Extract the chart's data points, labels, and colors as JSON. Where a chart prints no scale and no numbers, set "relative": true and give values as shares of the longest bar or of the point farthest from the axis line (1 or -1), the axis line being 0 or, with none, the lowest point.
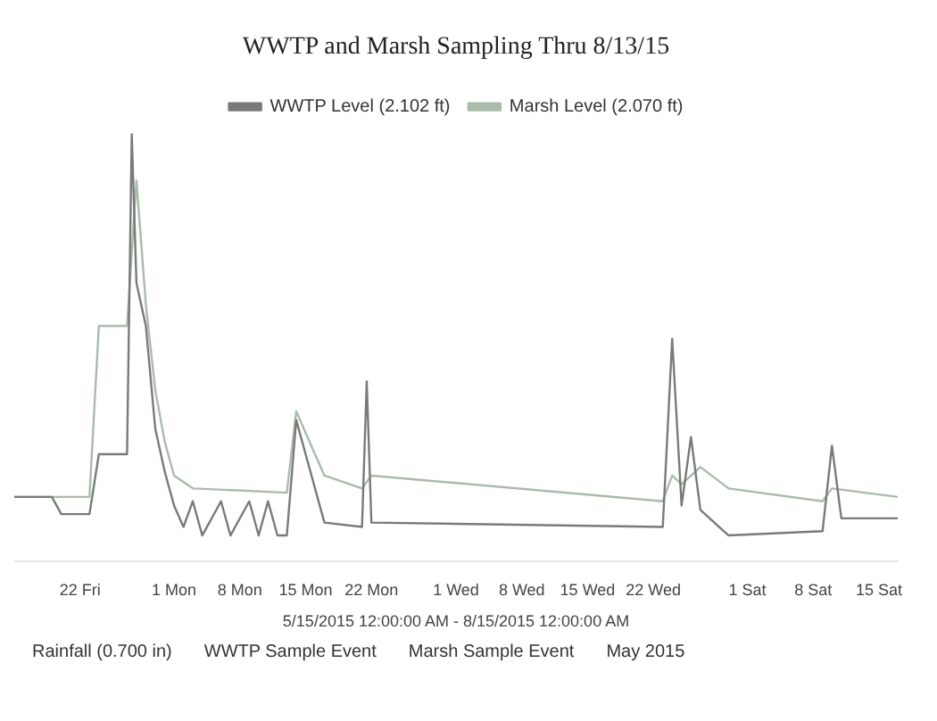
{
  "chart_data": {
    "type": "line",
    "title": "WWTP and Marsh Sampling Thru 8/13/15",
    "xlabel": "5/15/2015 12:00:00 AM - 8/15/2015 12:00:00 AM",
    "relative": true,
    "legend": "top",
    "marker": "none",
    "line_style": "solid",
    "grid": false,
    "xlim": [
      "2015-05-15",
      "2015-08-17"
    ],
    "xticks": [
      {
        "value": "2015-05-22",
        "label": "22 Fri"
      },
      {
        "value": "2015-06-01",
        "label": "1 Mon"
      },
      {
        "value": "2015-06-08",
        "label": "8 Mon"
      },
      {
        "value": "2015-06-15",
        "label": "15 Mon"
      },
      {
        "value": "2015-06-22",
        "label": "22 Mon"
      },
      {
        "value": "2015-07-01",
        "label": "1 Wed"
      },
      {
        "value": "2015-07-08",
        "label": "8 Wed"
      },
      {
        "value": "2015-07-15",
        "label": "15 Wed"
      },
      {
        "value": "2015-07-22",
        "label": "22 Wed"
      },
      {
        "value": "2015-08-01",
        "label": "1 Sat"
      },
      {
        "value": "2015-08-08",
        "label": "8 Sat"
      },
      {
        "value": "2015-08-15",
        "label": "15 Sat"
      }
    ],
    "series": [
      {
        "name": "WWTP Level (2.102 ft)",
        "color": "#7a7a7a",
        "x": [
          "2015-05-15",
          "2015-05-19",
          "2015-05-20",
          "2015-05-23",
          "2015-05-24",
          "2015-05-27",
          "2015-05-27T12:00",
          "2015-05-28",
          "2015-05-29",
          "2015-05-30",
          "2015-05-31",
          "2015-06-01",
          "2015-06-02",
          "2015-06-03",
          "2015-06-04",
          "2015-06-06",
          "2015-06-07",
          "2015-06-09",
          "2015-06-10",
          "2015-06-11",
          "2015-06-12",
          "2015-06-13",
          "2015-06-14",
          "2015-06-17",
          "2015-06-21",
          "2015-06-21T12:00",
          "2015-06-22",
          "2015-07-23",
          "2015-07-24",
          "2015-07-25",
          "2015-07-26",
          "2015-07-27",
          "2015-07-30",
          "2015-08-09",
          "2015-08-10",
          "2015-08-11",
          "2015-08-17"
        ],
        "values": [
          0.15,
          0.15,
          0.11,
          0.11,
          0.25,
          0.25,
          1.0,
          0.65,
          0.55,
          0.31,
          0.21,
          0.13,
          0.08,
          0.14,
          0.06,
          0.14,
          0.06,
          0.14,
          0.06,
          0.14,
          0.06,
          0.06,
          0.33,
          0.09,
          0.08,
          0.42,
          0.09,
          0.08,
          0.52,
          0.13,
          0.29,
          0.12,
          0.06,
          0.07,
          0.27,
          0.1,
          0.1
        ]
      },
      {
        "name": "Marsh Level (2.070 ft)",
        "color": "#a9bca9",
        "x": [
          "2015-05-15",
          "2015-05-23",
          "2015-05-24",
          "2015-05-27",
          "2015-05-28",
          "2015-05-29",
          "2015-05-30",
          "2015-05-31",
          "2015-06-01",
          "2015-06-03",
          "2015-06-13",
          "2015-06-14",
          "2015-06-17",
          "2015-06-21",
          "2015-06-22",
          "2015-07-23",
          "2015-07-24",
          "2015-07-25",
          "2015-07-27",
          "2015-07-30",
          "2015-08-09",
          "2015-08-10",
          "2015-08-17"
        ],
        "values": [
          0.15,
          0.15,
          0.55,
          0.55,
          0.89,
          0.6,
          0.4,
          0.28,
          0.2,
          0.17,
          0.16,
          0.35,
          0.2,
          0.17,
          0.2,
          0.14,
          0.2,
          0.18,
          0.22,
          0.17,
          0.14,
          0.17,
          0.15
        ]
      }
    ],
    "annotations": [
      "Rainfall (0.700 in)",
      "WWTP Sample Event",
      "Marsh Sample Event",
      "May 2015"
    ]
  }
}
